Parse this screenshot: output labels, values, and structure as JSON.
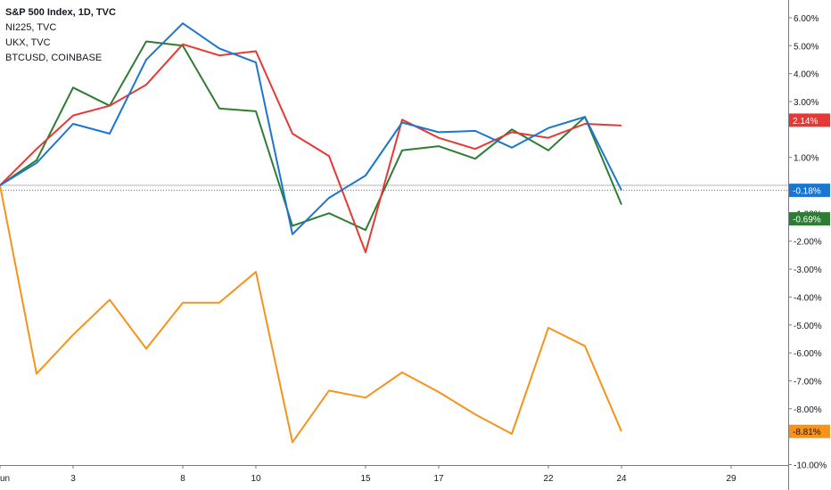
{
  "legend": [
    {
      "label": "S&P 500 Index, 1D, TVC"
    },
    {
      "label": "NI225, TVC"
    },
    {
      "label": "UKX, TVC"
    },
    {
      "label": "BTCUSD, COINBASE"
    }
  ],
  "colors": {
    "spx": "#1976d2",
    "ni225": "#e53935",
    "ukx": "#2e7d32",
    "btc": "#f7931a",
    "baseline": "#b2b5be",
    "grid": "#e6e6e6"
  },
  "chart_data": {
    "type": "line",
    "title": "S&P 500 Index, 1D, TVC",
    "x_tick_labels": [
      "un",
      "3",
      "8",
      "10",
      "15",
      "17",
      "22",
      "24",
      "29"
    ],
    "y_tick_labels": [
      "6.00%",
      "5.00%",
      "4.00%",
      "3.00%",
      "1.00%",
      "-1.00%",
      "-2.00%",
      "-3.00%",
      "-4.00%",
      "-5.00%",
      "-6.00%",
      "-7.00%",
      "-8.00%",
      "-10.00%"
    ],
    "ylim": [
      -10.3,
      6.5
    ],
    "y_unit": "%",
    "grid": false,
    "series": [
      {
        "name": "S&P 500 Index, 1D, TVC",
        "key": "spx",
        "last_label": "-0.18%",
        "values": [
          0.0,
          0.8,
          2.2,
          1.85,
          4.5,
          5.8,
          4.9,
          4.4,
          -1.75,
          -0.45,
          0.35,
          2.25,
          1.9,
          1.95,
          1.35,
          2.05,
          2.45,
          -0.18
        ]
      },
      {
        "name": "NI225, TVC",
        "key": "ni225",
        "last_label": "2.14%",
        "values": [
          0.0,
          1.3,
          2.5,
          2.85,
          3.6,
          5.05,
          4.65,
          4.8,
          1.85,
          1.05,
          -2.4,
          2.35,
          1.7,
          1.3,
          1.9,
          1.7,
          2.2,
          2.14
        ]
      },
      {
        "name": "UKX, TVC",
        "key": "ukx",
        "last_label": "-0.69%",
        "values": [
          0.0,
          0.9,
          3.5,
          2.85,
          5.15,
          5.0,
          2.75,
          2.65,
          -1.45,
          -1.0,
          -1.6,
          1.25,
          1.4,
          0.95,
          2.0,
          1.25,
          2.45,
          -0.69
        ]
      },
      {
        "name": "BTCUSD, COINBASE",
        "key": "btc",
        "last_label": "-8.81%",
        "values": [
          0.0,
          -6.75,
          -5.35,
          -4.1,
          -5.85,
          -4.2,
          -4.2,
          -3.1,
          -9.2,
          -7.35,
          -7.6,
          -6.7,
          -7.4,
          -8.2,
          -8.9,
          -5.1,
          -5.75,
          -8.81
        ]
      }
    ]
  }
}
